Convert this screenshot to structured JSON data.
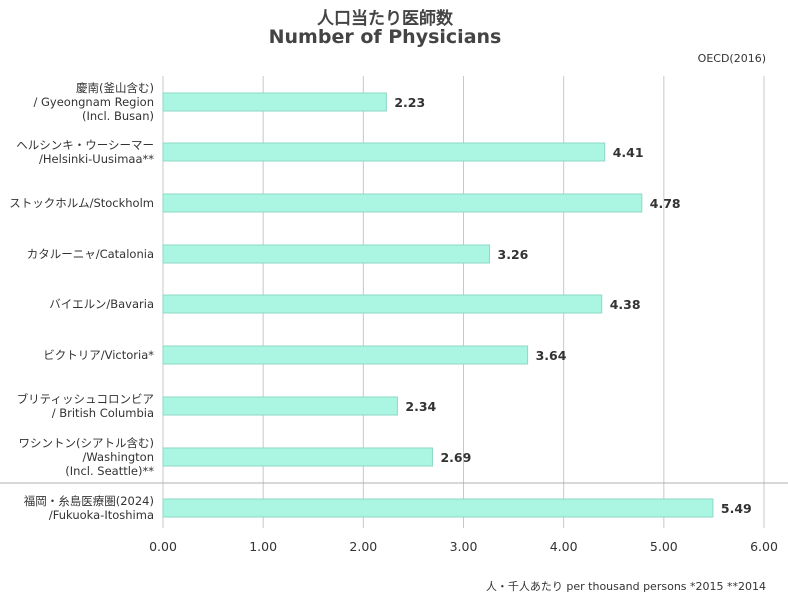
{
  "header": {
    "title_ja": "人口当たり医師数",
    "title_en": "Number of Physicians",
    "source": "OECD(2016)",
    "footnote": "人・千人あたり per thousand persons *2015 **2014"
  },
  "chart_data": {
    "type": "bar",
    "orientation": "horizontal",
    "categories": [
      [
        "慶南(釜山含む)",
        "/ Gyeongnam Region",
        "(Incl. Busan)"
      ],
      [
        "ヘルシンキ・ウーシーマー",
        "/Helsinki-Uusimaa**"
      ],
      [
        "ストックホルム/Stockholm"
      ],
      [
        "カタルーニャ/Catalonia"
      ],
      [
        "バイエルン/Bavaria"
      ],
      [
        "ビクトリア/Victoria*"
      ],
      [
        "ブリティッシュコロンビア",
        "/ British Columbia"
      ],
      [
        "ワシントン(シアトル含む)",
        "/Washington",
        "(Incl. Seattle)**"
      ],
      [
        "福岡・糸島医療圏(2024)",
        "/Fukuoka-Itoshima"
      ]
    ],
    "values": [
      2.23,
      4.41,
      4.78,
      3.26,
      4.38,
      3.64,
      2.34,
      2.69,
      5.49
    ],
    "value_labels": [
      "2.23",
      "4.41",
      "4.78",
      "3.26",
      "4.38",
      "3.64",
      "2.34",
      "2.69",
      "5.49"
    ],
    "xlim": [
      0,
      6
    ],
    "xticks": [
      "0.00",
      "1.00",
      "2.00",
      "3.00",
      "4.00",
      "5.00",
      "6.00"
    ],
    "grid": "vertical",
    "bar_color": "#abf5e3",
    "bar_border": "#8cd8c6"
  }
}
